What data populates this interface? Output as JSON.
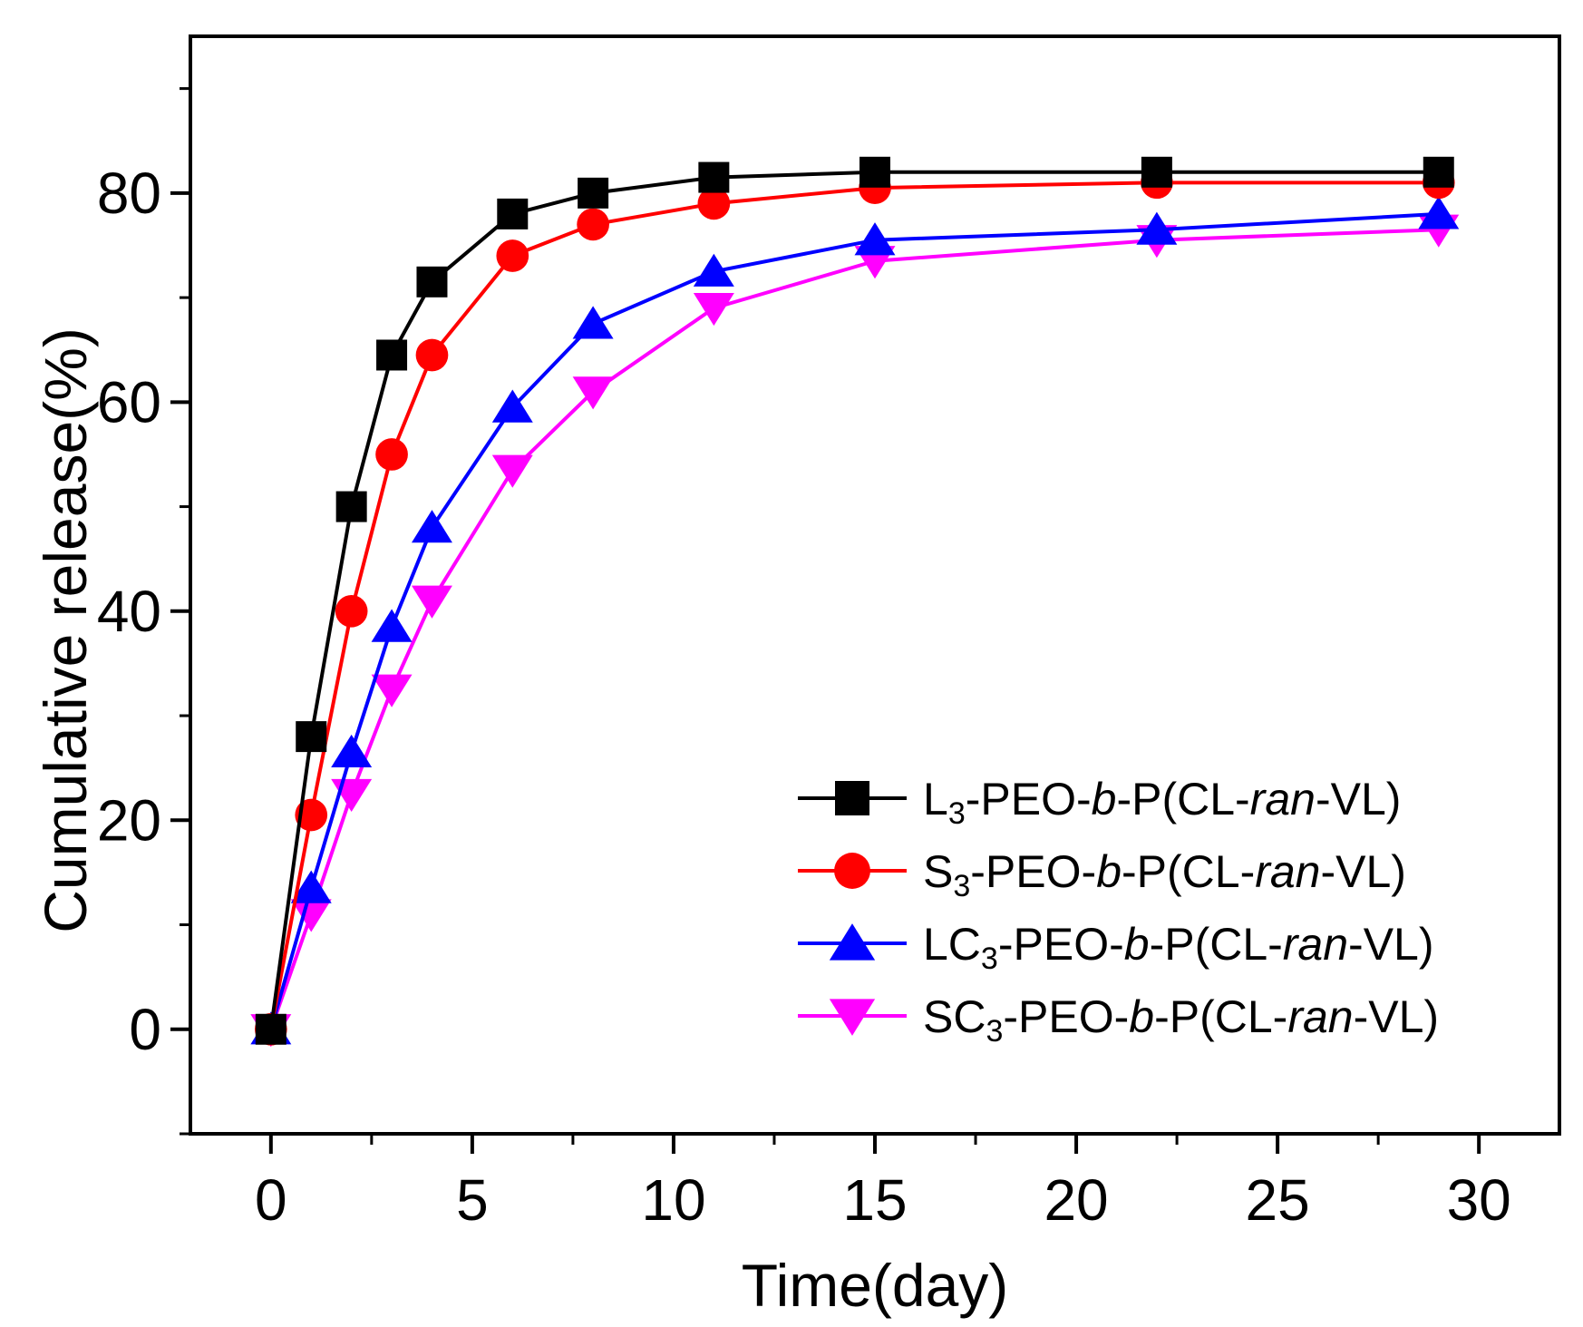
{
  "chart_data": {
    "type": "line",
    "xlabel": "Time(day)",
    "ylabel": "Cumulative release(%)",
    "xlim": [
      -2,
      32
    ],
    "ylim": [
      -10,
      95
    ],
    "xticks": [
      0,
      5,
      10,
      15,
      20,
      25,
      30
    ],
    "xtick_labels": [
      "0",
      "5",
      "10",
      "15",
      "20",
      "25",
      "30"
    ],
    "yticks": [
      0,
      20,
      40,
      60,
      80
    ],
    "ytick_labels": [
      "0",
      "20",
      "40",
      "60",
      "80"
    ],
    "grid": false,
    "legend_position": "bottom-right",
    "x": [
      0,
      1,
      2,
      3,
      4,
      6,
      8,
      11,
      15,
      22,
      29
    ],
    "series": [
      {
        "name": "L3-PEO-b-P(CL-ran-VL)",
        "label_parts": [
          {
            "text": "L",
            "style": "normal"
          },
          {
            "text": "3",
            "style": "sub"
          },
          {
            "text": "-PEO-",
            "style": "normal"
          },
          {
            "text": "b",
            "style": "italic"
          },
          {
            "text": "-P(CL-",
            "style": "normal"
          },
          {
            "text": "ran",
            "style": "italic"
          },
          {
            "text": "-VL)",
            "style": "normal"
          }
        ],
        "color": "#000000",
        "marker": "square",
        "values": [
          0,
          28,
          50,
          64.5,
          71.5,
          78,
          80,
          81.5,
          82,
          82,
          82
        ]
      },
      {
        "name": "S3-PEO-b-P(CL-ran-VL)",
        "label_parts": [
          {
            "text": "S",
            "style": "normal"
          },
          {
            "text": "3",
            "style": "sub"
          },
          {
            "text": "-PEO-",
            "style": "normal"
          },
          {
            "text": "b",
            "style": "italic"
          },
          {
            "text": "-P(CL-",
            "style": "normal"
          },
          {
            "text": "ran",
            "style": "italic"
          },
          {
            "text": "-VL)",
            "style": "normal"
          }
        ],
        "color": "#ff0000",
        "marker": "circle",
        "values": [
          0,
          20.5,
          40,
          55,
          64.5,
          74,
          77,
          79,
          80.5,
          81,
          81
        ]
      },
      {
        "name": "LC3-PEO-b-P(CL-ran-VL)",
        "label_parts": [
          {
            "text": "LC",
            "style": "normal"
          },
          {
            "text": "3",
            "style": "sub"
          },
          {
            "text": "-PEO-",
            "style": "normal"
          },
          {
            "text": "b",
            "style": "italic"
          },
          {
            "text": "-P(CL-",
            "style": "normal"
          },
          {
            "text": "ran",
            "style": "italic"
          },
          {
            "text": "-VL)",
            "style": "normal"
          }
        ],
        "color": "#0000ff",
        "marker": "triangle-up",
        "values": [
          0,
          13.5,
          26.5,
          38.5,
          48,
          59.5,
          67.5,
          72.5,
          75.5,
          76.5,
          78
        ]
      },
      {
        "name": "SC3-PEO-b-P(CL-ran-VL)",
        "label_parts": [
          {
            "text": "SC",
            "style": "normal"
          },
          {
            "text": "3",
            "style": "sub"
          },
          {
            "text": "-PEO-",
            "style": "normal"
          },
          {
            "text": "b",
            "style": "italic"
          },
          {
            "text": "-P(CL-",
            "style": "normal"
          },
          {
            "text": "ran",
            "style": "italic"
          },
          {
            "text": "-VL)",
            "style": "normal"
          }
        ],
        "color": "#ff00ff",
        "marker": "triangle-down",
        "values": [
          0,
          11,
          22.5,
          32.5,
          41,
          53.5,
          61,
          69,
          73.5,
          75.5,
          76.5
        ]
      }
    ]
  }
}
